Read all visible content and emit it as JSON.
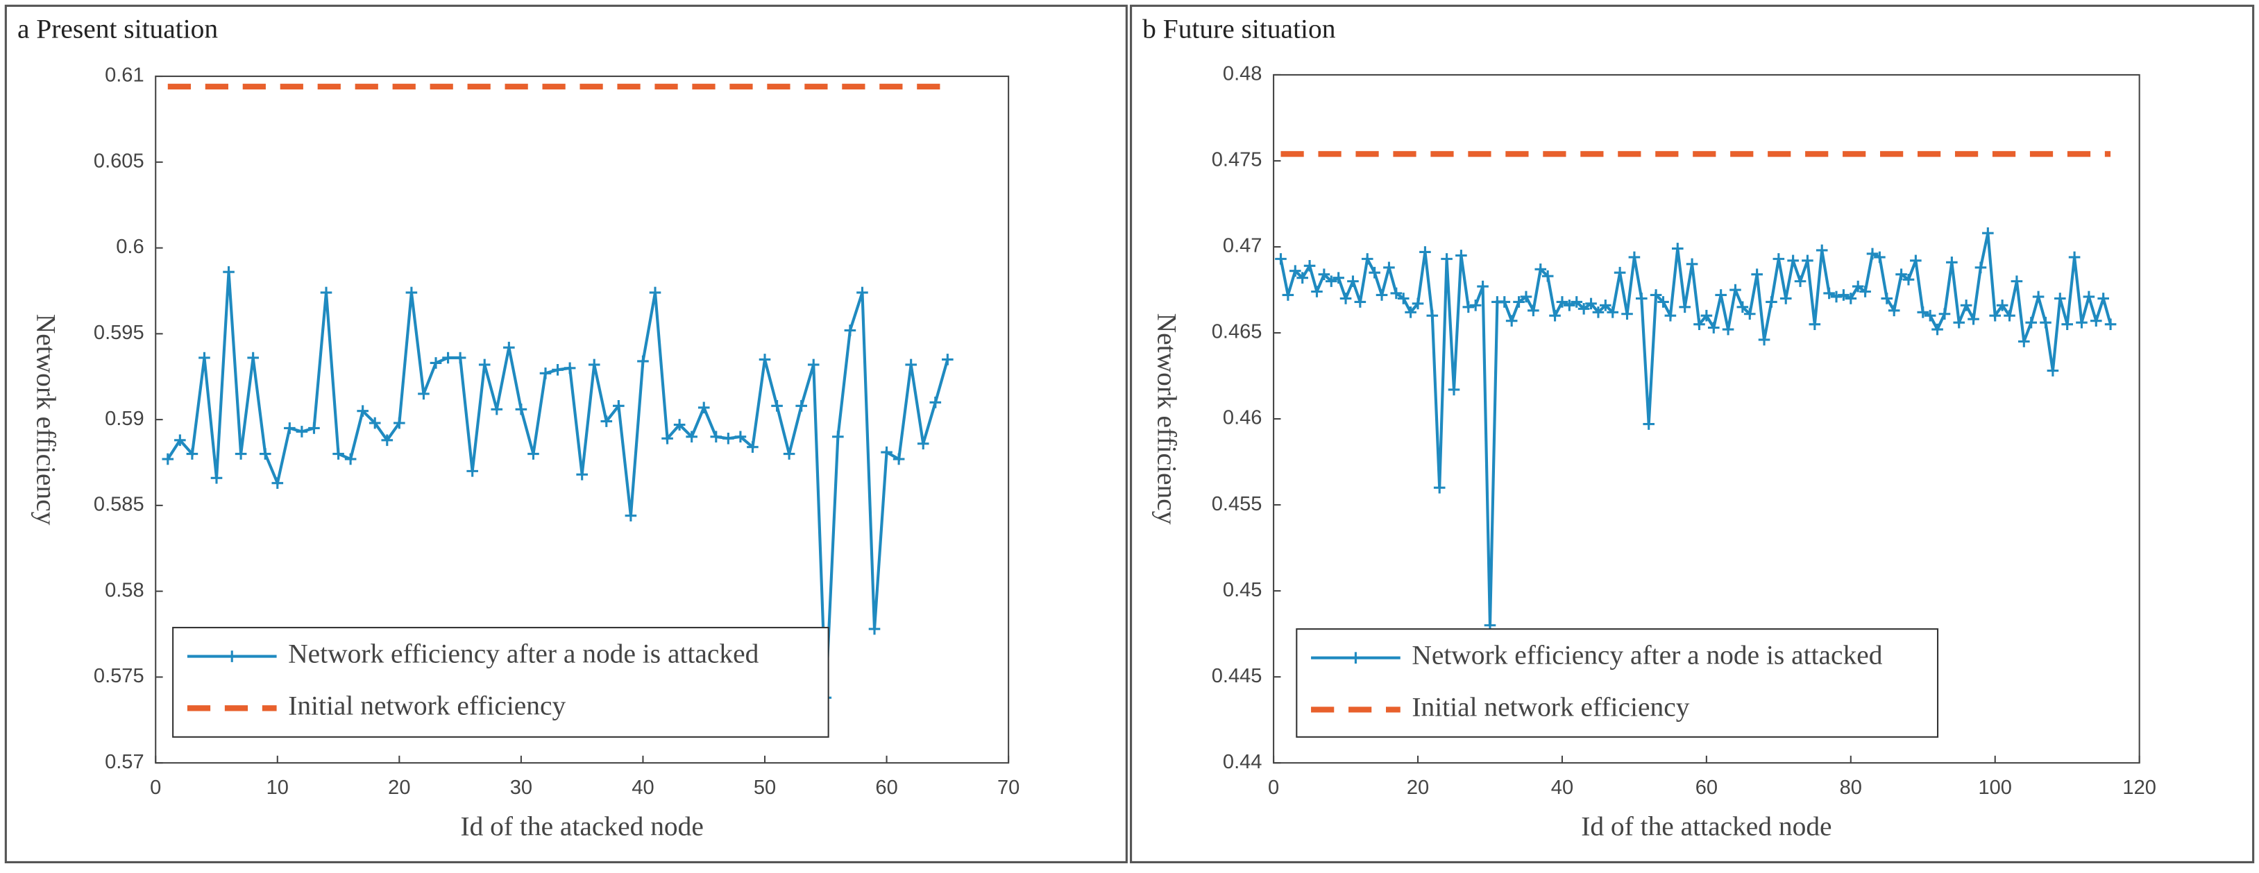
{
  "chart_data": [
    {
      "type": "line",
      "title": "a Present situation",
      "xlabel": "Id of the atacked node",
      "ylabel": "Network efficiency",
      "xlim": [
        0,
        70
      ],
      "xticks": [
        0,
        10,
        20,
        30,
        40,
        50,
        60,
        70
      ],
      "ylim": [
        0.57,
        0.61
      ],
      "yticks": [
        0.57,
        0.575,
        0.58,
        0.585,
        0.59,
        0.595,
        0.6,
        0.605,
        0.61
      ],
      "series": [
        {
          "name": "Network efficiency after a node is attacked",
          "color": "#1f8ac0",
          "marker": "+",
          "x": [
            1,
            2,
            3,
            4,
            5,
            6,
            7,
            8,
            9,
            10,
            11,
            12,
            13,
            14,
            15,
            16,
            17,
            18,
            19,
            20,
            21,
            22,
            23,
            24,
            25,
            26,
            27,
            28,
            29,
            30,
            31,
            32,
            33,
            34,
            35,
            36,
            37,
            38,
            39,
            40,
            41,
            42,
            43,
            44,
            45,
            46,
            47,
            48,
            49,
            50,
            51,
            52,
            53,
            54,
            55,
            56,
            57,
            58,
            59,
            60,
            61,
            62,
            63,
            64,
            65
          ],
          "values": [
            0.5877,
            0.5888,
            0.588,
            0.5936,
            0.5866,
            0.5986,
            0.588,
            0.5936,
            0.588,
            0.5863,
            0.5895,
            0.5893,
            0.5895,
            0.5974,
            0.588,
            0.5877,
            0.5905,
            0.5898,
            0.5888,
            0.5898,
            0.5974,
            0.5915,
            0.5933,
            0.5936,
            0.5936,
            0.587,
            0.5932,
            0.5906,
            0.5942,
            0.5906,
            0.588,
            0.5927,
            0.5929,
            0.593,
            0.5868,
            0.5932,
            0.5899,
            0.5908,
            0.5844,
            0.5934,
            0.5974,
            0.5889,
            0.5897,
            0.589,
            0.5907,
            0.589,
            0.5889,
            0.589,
            0.5884,
            0.5935,
            0.5908,
            0.588,
            0.5908,
            0.5932,
            0.5738,
            0.589,
            0.5952,
            0.5974,
            0.5778,
            0.5881,
            0.5877,
            0.5932,
            0.5886,
            0.591,
            0.5935
          ]
        },
        {
          "name": "Initial network efficiency",
          "color": "#e8602c",
          "dashed": true,
          "x": [
            1,
            65
          ],
          "values": [
            0.6094,
            0.6094
          ]
        }
      ]
    },
    {
      "type": "line",
      "title": "b Future situation",
      "xlabel": "Id of the attacked node",
      "ylabel": "Network efficiency",
      "xlim": [
        0,
        120
      ],
      "xticks": [
        0,
        20,
        40,
        60,
        80,
        100,
        120
      ],
      "ylim": [
        0.44,
        0.48
      ],
      "yticks": [
        0.44,
        0.445,
        0.45,
        0.455,
        0.46,
        0.465,
        0.47,
        0.475,
        0.48
      ],
      "series": [
        {
          "name": "Network efficiency after a node is attacked",
          "color": "#1f8ac0",
          "marker": "+",
          "x": [
            1,
            2,
            3,
            4,
            5,
            6,
            7,
            8,
            9,
            10,
            11,
            12,
            13,
            14,
            15,
            16,
            17,
            18,
            19,
            20,
            21,
            22,
            23,
            24,
            25,
            26,
            27,
            28,
            29,
            30,
            31,
            32,
            33,
            34,
            35,
            36,
            37,
            38,
            39,
            40,
            41,
            42,
            43,
            44,
            45,
            46,
            47,
            48,
            49,
            50,
            51,
            52,
            53,
            54,
            55,
            56,
            57,
            58,
            59,
            60,
            61,
            62,
            63,
            64,
            65,
            66,
            67,
            68,
            69,
            70,
            71,
            72,
            73,
            74,
            75,
            76,
            77,
            78,
            79,
            80,
            81,
            82,
            83,
            84,
            85,
            86,
            87,
            88,
            89,
            90,
            91,
            92,
            93,
            94,
            95,
            96,
            97,
            98,
            99,
            100,
            101,
            102,
            103,
            104,
            105,
            106,
            107,
            108,
            109,
            110,
            111,
            112,
            113,
            114,
            115,
            116
          ],
          "values": [
            0.4693,
            0.4672,
            0.4686,
            0.4682,
            0.4689,
            0.4674,
            0.4684,
            0.468,
            0.4682,
            0.467,
            0.468,
            0.4668,
            0.4693,
            0.4685,
            0.4672,
            0.4688,
            0.4673,
            0.467,
            0.4662,
            0.4667,
            0.4697,
            0.466,
            0.456,
            0.4693,
            0.4617,
            0.4695,
            0.4665,
            0.4666,
            0.4677,
            0.448,
            0.4668,
            0.4668,
            0.4657,
            0.4668,
            0.4671,
            0.4663,
            0.4687,
            0.4683,
            0.466,
            0.4668,
            0.4666,
            0.4668,
            0.4664,
            0.4667,
            0.4662,
            0.4666,
            0.4662,
            0.4685,
            0.4661,
            0.4694,
            0.467,
            0.4597,
            0.4672,
            0.4668,
            0.466,
            0.4699,
            0.4665,
            0.469,
            0.4655,
            0.466,
            0.4653,
            0.4672,
            0.4652,
            0.4675,
            0.4665,
            0.4661,
            0.4684,
            0.4646,
            0.4668,
            0.4693,
            0.467,
            0.4692,
            0.468,
            0.4692,
            0.4655,
            0.4698,
            0.4673,
            0.4671,
            0.4672,
            0.467,
            0.4677,
            0.4674,
            0.4696,
            0.4694,
            0.467,
            0.4663,
            0.4684,
            0.4681,
            0.4692,
            0.4662,
            0.466,
            0.4652,
            0.4661,
            0.4691,
            0.4656,
            0.4666,
            0.4658,
            0.4688,
            0.4708,
            0.466,
            0.4666,
            0.466,
            0.468,
            0.4645,
            0.4656,
            0.4671,
            0.4656,
            0.4628,
            0.467,
            0.4655,
            0.4694,
            0.4656,
            0.4671,
            0.4657,
            0.467,
            0.4655
          ]
        },
        {
          "name": "Initial network efficiency",
          "color": "#e8602c",
          "dashed": true,
          "x": [
            1,
            116
          ],
          "values": [
            0.4754,
            0.4754
          ]
        }
      ]
    }
  ]
}
